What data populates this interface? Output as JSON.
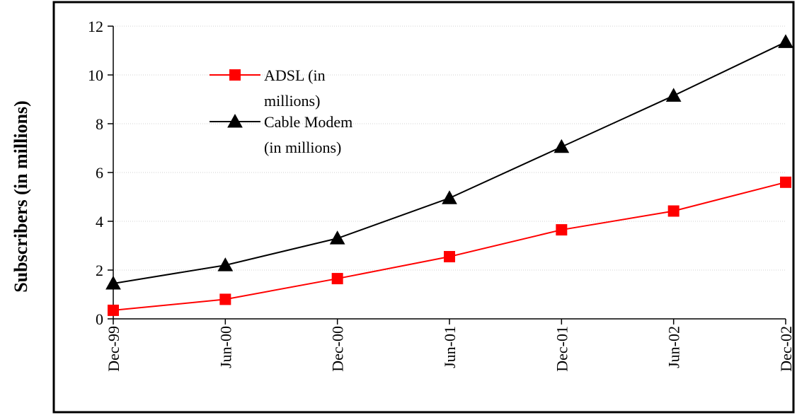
{
  "chart_data": {
    "type": "line",
    "title": "",
    "xlabel": "",
    "ylabel": "Subscribers (in millions)",
    "categories": [
      "Dec-99",
      "Jun-00",
      "Dec-00",
      "Jun-01",
      "Dec-01",
      "Jun-02",
      "Dec-02"
    ],
    "ylim": [
      0,
      12
    ],
    "yticks": [
      0,
      2,
      4,
      6,
      8,
      10,
      12
    ],
    "grid": true,
    "legend_position": "top-left",
    "series": [
      {
        "name_lines": [
          "ADSL (in",
          "millions)"
        ],
        "color": "#ff0000",
        "marker": "square",
        "values": [
          0.35,
          0.8,
          1.65,
          2.55,
          3.65,
          4.42,
          5.6
        ]
      },
      {
        "name_lines": [
          "Cable Modem",
          "(in millions)"
        ],
        "color": "#000000",
        "marker": "triangle",
        "values": [
          1.45,
          2.2,
          3.3,
          4.95,
          7.05,
          9.15,
          11.35
        ]
      }
    ]
  }
}
